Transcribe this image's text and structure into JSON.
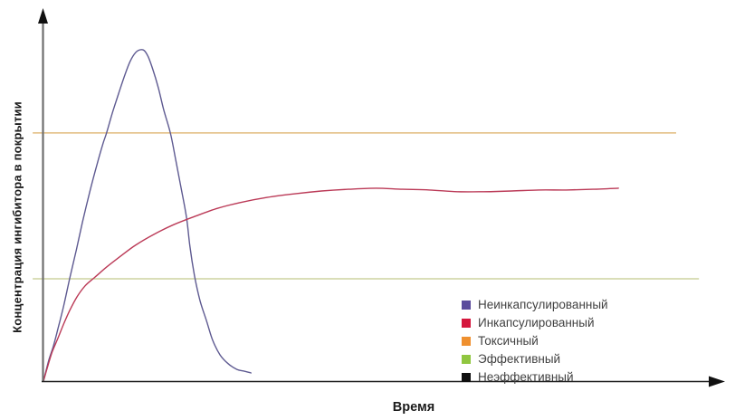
{
  "chart_data": {
    "type": "line",
    "title": "",
    "xlabel": "Время",
    "ylabel": "Концентрация ингибитора в покрытии",
    "x_range": [
      0,
      100
    ],
    "y_range": [
      0,
      100
    ],
    "ticks": "none",
    "grid": false,
    "legend_position": "inside-lower-right",
    "series": [
      {
        "id": "unencapsulated",
        "name": "Неинкапсулированный",
        "type": "curve",
        "color": "#5b4b9d",
        "stroke_color": "#5e5a91",
        "points": [
          [
            0,
            0
          ],
          [
            0.8,
            5.9
          ],
          [
            1.5,
            10
          ],
          [
            2.2,
            15.1
          ],
          [
            3,
            21.2
          ],
          [
            3.9,
            28.9
          ],
          [
            4.9,
            37.1
          ],
          [
            5.8,
            44.8
          ],
          [
            6.9,
            53.5
          ],
          [
            8,
            61.4
          ],
          [
            8.9,
            67.3
          ],
          [
            9.4,
            70.1
          ],
          [
            10.2,
            75.4
          ],
          [
            11.2,
            81.3
          ],
          [
            12.1,
            86.4
          ],
          [
            12.9,
            90.3
          ],
          [
            13.7,
            92.8
          ],
          [
            14.4,
            93.6
          ],
          [
            15,
            93.4
          ],
          [
            15.6,
            91.6
          ],
          [
            16.3,
            88
          ],
          [
            17.1,
            82.9
          ],
          [
            17.9,
            76.7
          ],
          [
            18.9,
            70.1
          ],
          [
            19.7,
            62.4
          ],
          [
            20.5,
            54.5
          ],
          [
            21.3,
            46.3
          ],
          [
            21.8,
            38.1
          ],
          [
            22.5,
            29.7
          ],
          [
            23.3,
            22.8
          ],
          [
            24.3,
            16.9
          ],
          [
            25.2,
            11.5
          ],
          [
            26.3,
            7.4
          ],
          [
            27.5,
            4.9
          ],
          [
            28.8,
            3.3
          ],
          [
            29.9,
            2.8
          ],
          [
            30.9,
            2.3
          ]
        ]
      },
      {
        "id": "encapsulated",
        "name": "Инкапсулированный",
        "type": "curve",
        "color": "#d5173d",
        "stroke_color": "#bb3a57",
        "points": [
          [
            0,
            0
          ],
          [
            0.7,
            4.6
          ],
          [
            1.3,
            8.2
          ],
          [
            2.2,
            12.3
          ],
          [
            3,
            16.1
          ],
          [
            3.9,
            19.9
          ],
          [
            5,
            23.8
          ],
          [
            6.2,
            26.9
          ],
          [
            7.7,
            29.4
          ],
          [
            9.4,
            32.2
          ],
          [
            11.3,
            35
          ],
          [
            13.7,
            38.4
          ],
          [
            16.4,
            41.4
          ],
          [
            19.4,
            44.2
          ],
          [
            22.5,
            46.5
          ],
          [
            25.9,
            48.8
          ],
          [
            29.2,
            50.4
          ],
          [
            33.3,
            51.9
          ],
          [
            37.3,
            52.9
          ],
          [
            41.4,
            53.7
          ],
          [
            45.4,
            54.2
          ],
          [
            49.5,
            54.5
          ],
          [
            53.5,
            54.2
          ],
          [
            57.5,
            54
          ],
          [
            61.6,
            53.5
          ],
          [
            65.6,
            53.5
          ],
          [
            69.7,
            53.7
          ],
          [
            73.7,
            54
          ],
          [
            77.8,
            54
          ],
          [
            81.8,
            54.2
          ],
          [
            85.6,
            54.5
          ]
        ]
      },
      {
        "id": "toxic",
        "name": "Токсичный",
        "type": "threshold",
        "color": "#ef902f",
        "stroke_color": "#dcae63",
        "y": 70.1,
        "x_span": [
          -1.6,
          94.2
        ]
      },
      {
        "id": "effective",
        "name": "Эффективный",
        "type": "threshold",
        "color": "#90c640",
        "stroke_color": "#c3ca8e",
        "y": 28.9,
        "x_span": [
          -1.6,
          97.6
        ]
      },
      {
        "id": "ineffective",
        "name": "Неэффективный",
        "type": "legend-only",
        "color": "#101010"
      }
    ]
  },
  "axes": {
    "y_axis_color": "#6e6e6e",
    "x_axis_color": "#1f1f1f",
    "arrow_color": "#111111"
  }
}
